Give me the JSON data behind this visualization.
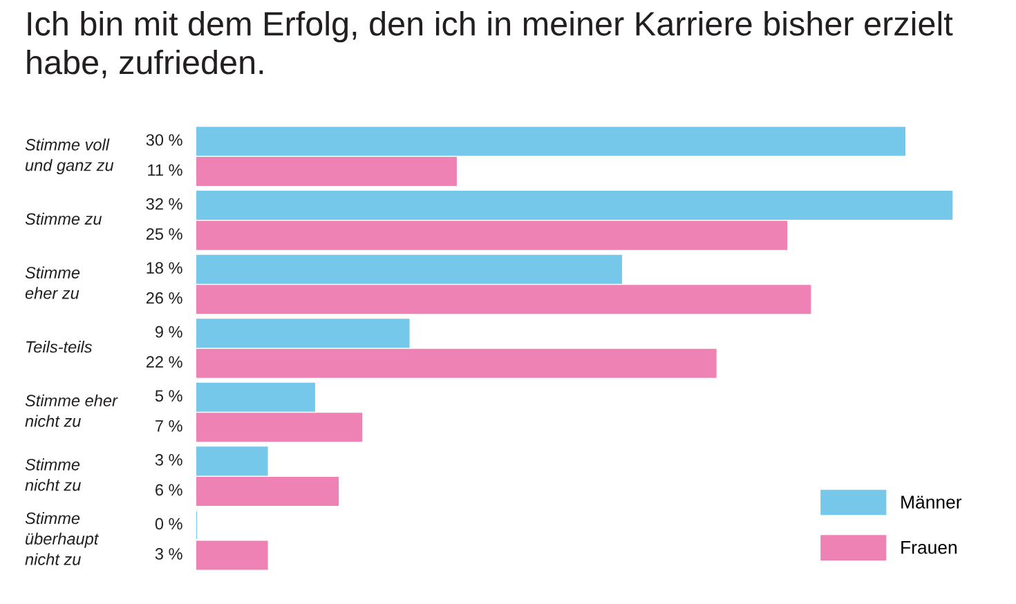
{
  "chart_data": {
    "type": "bar",
    "orientation": "horizontal",
    "title": "Ich bin mit dem Erfolg, den ich in meiner Karriere bisher erzielt habe, zufrieden.",
    "categories": [
      "Stimme voll\nund ganz zu",
      "Stimme zu",
      "Stimme\neher zu",
      "Teils-teils",
      "Stimme eher\nnicht zu",
      "Stimme\nnicht zu",
      "Stimme\nüberhaupt\nnicht zu"
    ],
    "series": [
      {
        "name": "Männer",
        "color": "#76c8ea",
        "values": [
          30,
          32,
          18,
          9,
          5,
          3,
          0
        ],
        "value_labels": [
          "30 %",
          "32 %",
          "18 %",
          "9 %",
          "5 %",
          "3 %",
          "0 %"
        ]
      },
      {
        "name": "Frauen",
        "color": "#ef82b5",
        "values": [
          11,
          25,
          26,
          22,
          7,
          6,
          3
        ],
        "value_labels": [
          "11 %",
          "25 %",
          "26 %",
          "22 %",
          "7 %",
          "6 %",
          "3 %"
        ]
      }
    ],
    "legend": "bottom right"
  }
}
